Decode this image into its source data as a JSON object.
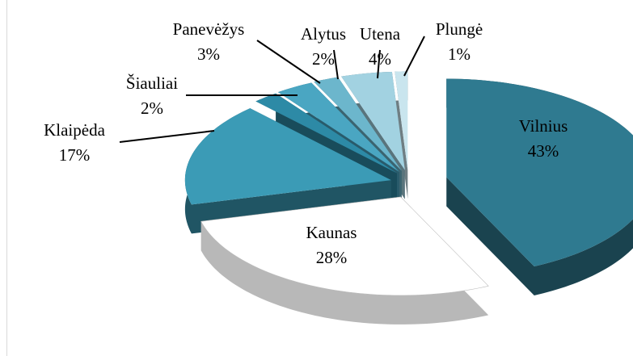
{
  "chart_data": {
    "type": "pie3d",
    "categories": [
      "Vilnius",
      "Kaunas",
      "Klaipėda",
      "Šiauliai",
      "Panevėžys",
      "Alytus",
      "Utena",
      "Plungė"
    ],
    "values": [
      43,
      28,
      17,
      2,
      3,
      2,
      4,
      1
    ],
    "value_labels": [
      "43%",
      "28%",
      "17%",
      "2%",
      "3%",
      "2%",
      "4%",
      "1%"
    ],
    "colors": [
      "#2f7a90",
      "#ffffff",
      "#3b9bb6",
      "#2d8aa6",
      "#4aa6c2",
      "#6cb6cc",
      "#a2d2e1",
      "#c9e5ee"
    ]
  }
}
